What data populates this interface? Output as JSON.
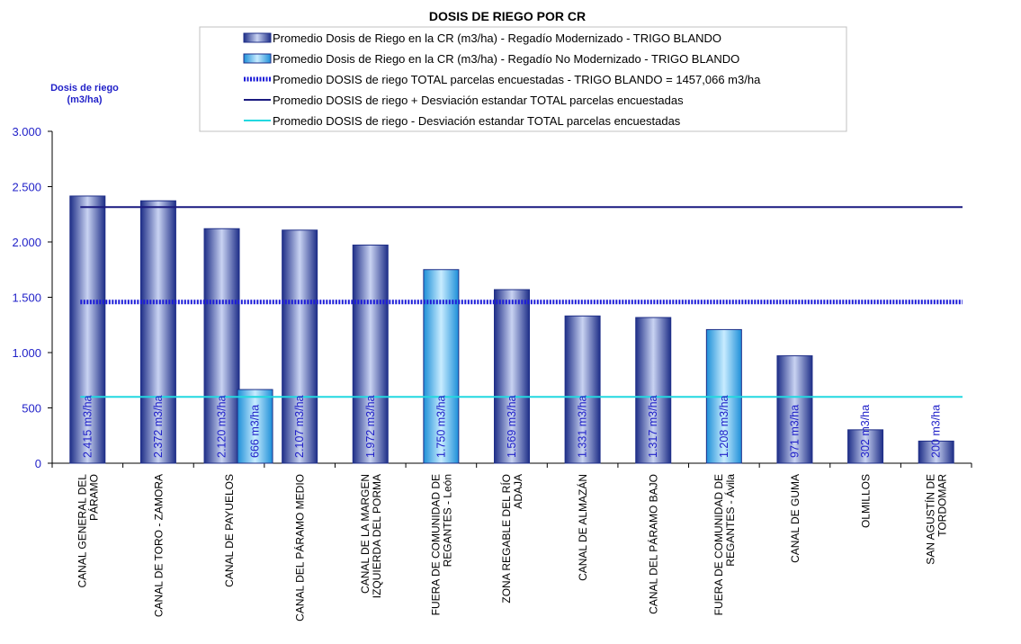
{
  "chart_data": {
    "type": "bar",
    "title": "DOSIS DE RIEGO POR CR",
    "ylabel_lines": [
      "Dosis de riego",
      "(m3/ha)"
    ],
    "ylim": [
      0,
      3000
    ],
    "yticks": [
      0,
      500,
      1000,
      1500,
      2000,
      2500,
      3000
    ],
    "ytick_labels": [
      "0",
      "500",
      "1.000",
      "1.500",
      "2.000",
      "2.500",
      "3.000"
    ],
    "grid": false,
    "legend_position": "top-center",
    "categories": [
      [
        "CANAL GENERAL DEL",
        "PÁRAMO"
      ],
      [
        "CANAL DE TORO - ZAMORA"
      ],
      [
        "CANAL DE PAYUELOS"
      ],
      [
        "CANAL DEL PÁRAMO MEDIO"
      ],
      [
        "CANAL DE LA MARGEN",
        "IZQUIERDA DEL PORMA"
      ],
      [
        "FUERA DE COMUNIDAD DE",
        "REGANTES - León"
      ],
      [
        "ZONA REGABLE DEL RÍO",
        "ADAJA"
      ],
      [
        "CANAL DE ALMAZÁN"
      ],
      [
        "CANAL DEL PÁRAMO BAJO"
      ],
      [
        "FUERA DE COMUNIDAD DE",
        "REGANTES - Ávila"
      ],
      [
        "CANAL DE GUMA"
      ],
      [
        "OLMILLOS"
      ],
      [
        "SAN AGUSTÍN DE",
        "TORDOMAR"
      ]
    ],
    "series": [
      {
        "name": "Promedio Dosis de Riego en la CR (m3/ha) - Regadío Modernizado - TRIGO BLANDO",
        "color": "#5a6fc0",
        "values": [
          2415,
          2372,
          2120,
          2107,
          1972,
          null,
          1569,
          1331,
          1317,
          null,
          971,
          302,
          200
        ],
        "labels": [
          "2.415 m3/ha",
          "2.372 m3/ha",
          "2.120 m3/ha",
          "2.107 m3/ha",
          "1.972 m3/ha",
          null,
          "1.569 m3/ha",
          "1.331 m3/ha",
          "1.317 m3/ha",
          null,
          "971 m3/ha",
          "302 m3/ha",
          "200 m3/ha"
        ]
      },
      {
        "name": "Promedio Dosis de Riego en la CR (m3/ha) - Regadío No Modernizado - TRIGO BLANDO",
        "color": "#3ea8e8",
        "values": [
          null,
          null,
          666,
          null,
          null,
          1750,
          null,
          null,
          null,
          1208,
          null,
          null,
          null
        ],
        "labels": [
          null,
          null,
          "666 m3/ha",
          null,
          null,
          "1.750 m3/ha",
          null,
          null,
          null,
          "1.208 m3/ha",
          null,
          null,
          null
        ]
      }
    ],
    "reference_lines": [
      {
        "name": "Promedio DOSIS de riego TOTAL parcelas encuestadas - TRIGO BLANDO = 1457,066 m3/ha",
        "value": 1457.066,
        "color": "#1c1cd8",
        "style": "dotted-thick"
      },
      {
        "name": "Promedio DOSIS de riego + Desviación estandar TOTAL parcelas encuestadas",
        "value": 2315,
        "color": "#1a1a80",
        "style": "solid"
      },
      {
        "name": "Promedio DOSIS de riego - Desviación estandar TOTAL parcelas encuestadas",
        "value": 600,
        "color": "#22d8e0",
        "style": "solid"
      }
    ]
  }
}
